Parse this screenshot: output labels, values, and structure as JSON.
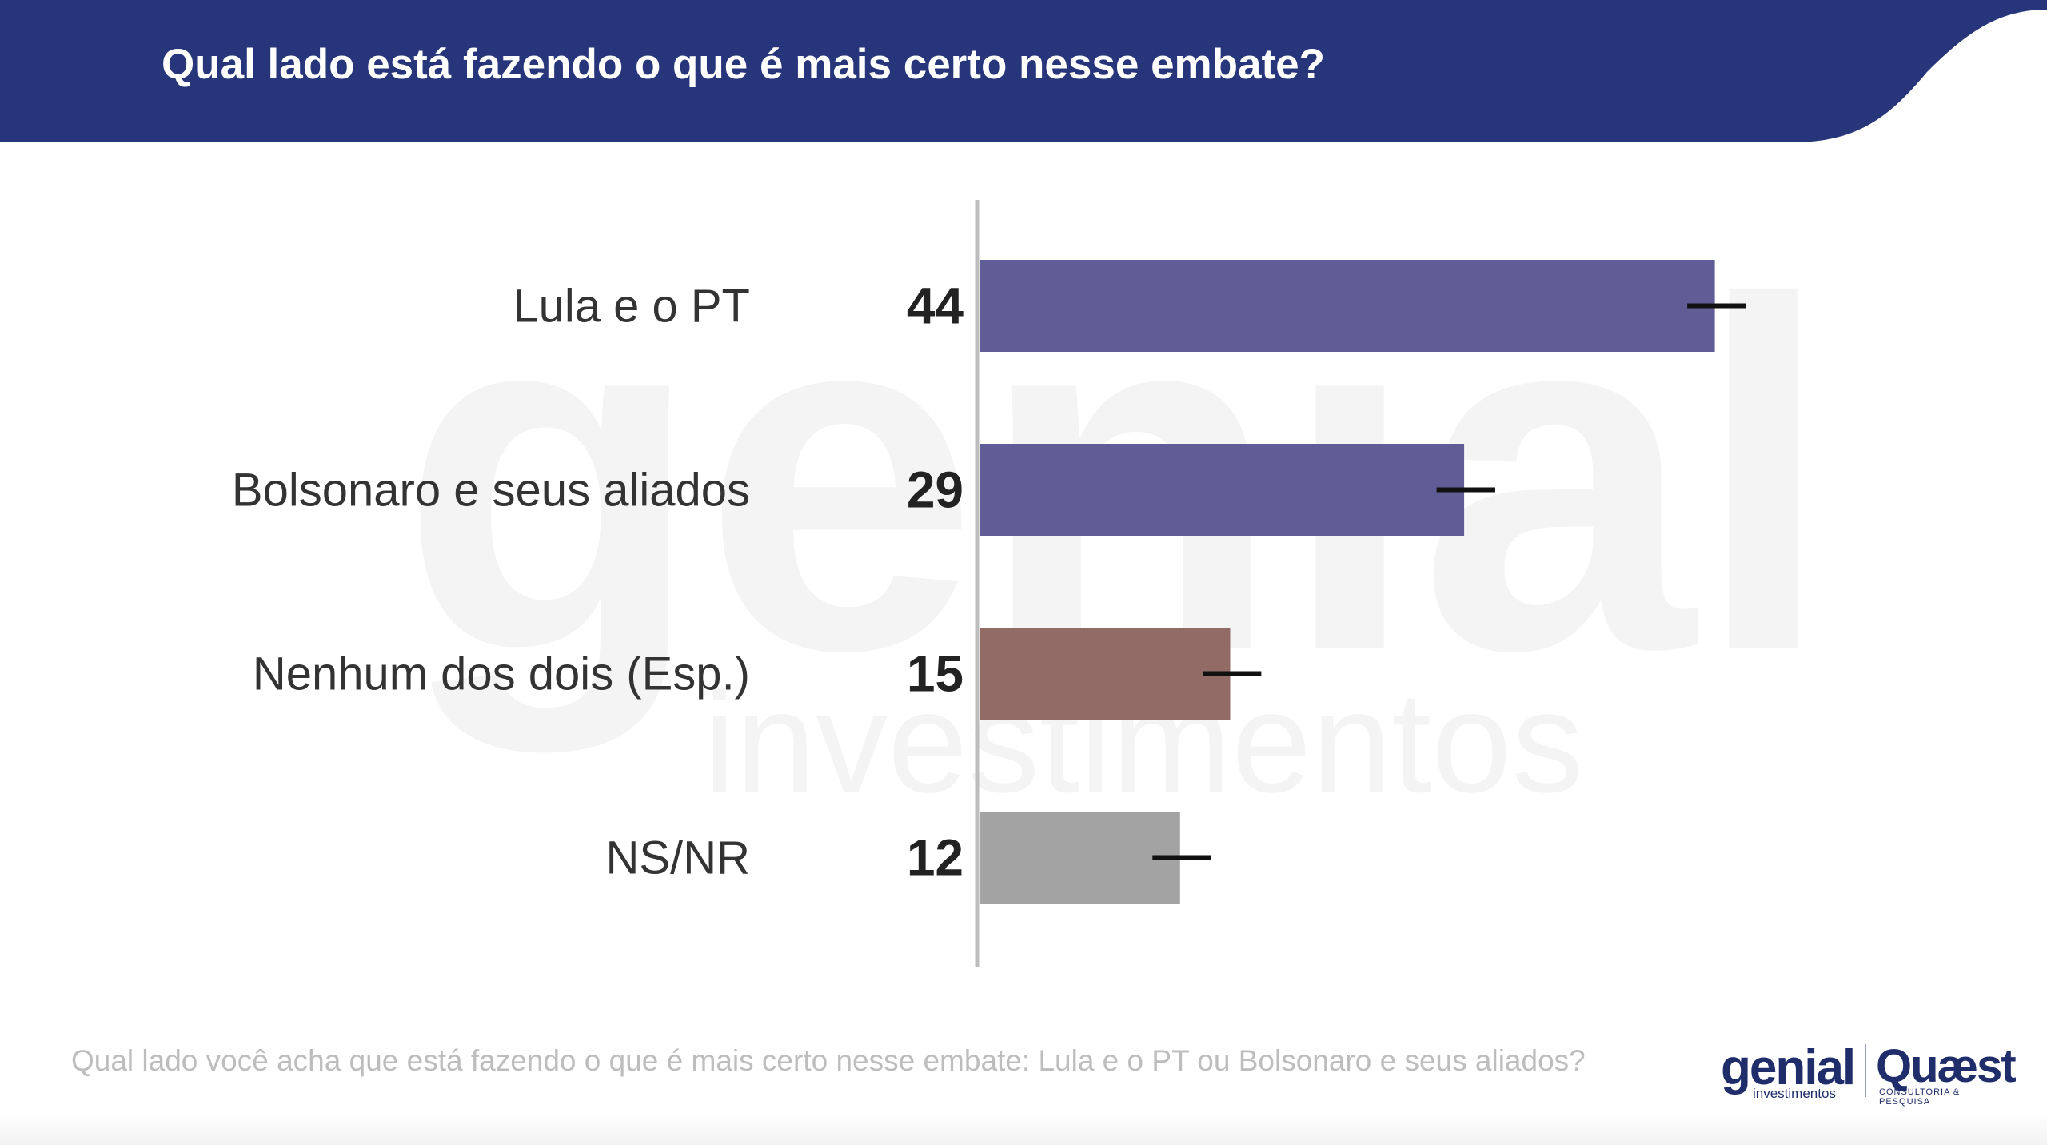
{
  "header": {
    "title": "Qual lado está fazendo o que é mais certo nesse embate?",
    "color": "#27357a"
  },
  "watermark": {
    "word": "genial",
    "sub": "investimentos"
  },
  "chart_data": {
    "type": "bar",
    "orientation": "horizontal",
    "categories": [
      "Lula e o PT",
      "Bolsonaro e seus aliados",
      "Nenhum dos dois (Esp.)",
      "NS/NR"
    ],
    "values": [
      44,
      29,
      15,
      12
    ],
    "value_labels": [
      "44",
      "29",
      "15",
      "12"
    ],
    "colors": [
      "#605c96",
      "#605c96",
      "#926a66",
      "#a3a3a3"
    ],
    "error_bars": true,
    "grid": false,
    "legend": "none"
  },
  "footnote": "Qual lado você acha que está fazendo o que é mais certo nesse embate: Lula e o PT ou Bolsonaro e seus aliados?",
  "logos": {
    "genial": {
      "word": "genial",
      "sub": "investimentos"
    },
    "quaest": {
      "word": "Quæst",
      "sub": "CONSULTORIA & PESQUISA"
    }
  }
}
